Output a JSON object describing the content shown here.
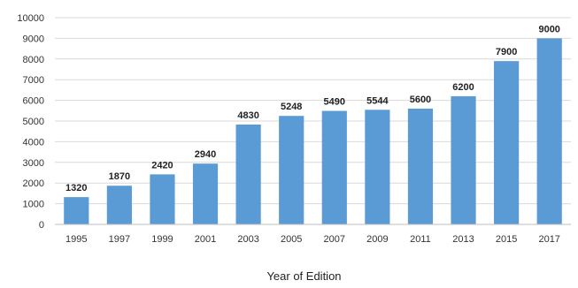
{
  "chart_data": {
    "type": "bar",
    "title": "",
    "xlabel": "Year of Edition",
    "ylabel": "",
    "categories": [
      "1995",
      "1997",
      "1999",
      "2001",
      "2003",
      "2005",
      "2007",
      "2009",
      "2011",
      "2013",
      "2015",
      "2017"
    ],
    "values": [
      1320,
      1870,
      2420,
      2940,
      4830,
      5248,
      5490,
      5544,
      5600,
      6200,
      7900,
      9000
    ],
    "data_labels": [
      "1320",
      "1870",
      "2420",
      "2940",
      "4830",
      "5248",
      "5490",
      "5544",
      "5600",
      "6200",
      "7900",
      "9000"
    ],
    "ylim": [
      0,
      10000
    ],
    "yticks": [
      "0",
      "1000",
      "2000",
      "3000",
      "4000",
      "5000",
      "6000",
      "7000",
      "8000",
      "9000",
      "10000"
    ],
    "grid": true,
    "legend": "none",
    "bar_color": "#5b9bd5",
    "grid_color": "#d9d9d9"
  }
}
